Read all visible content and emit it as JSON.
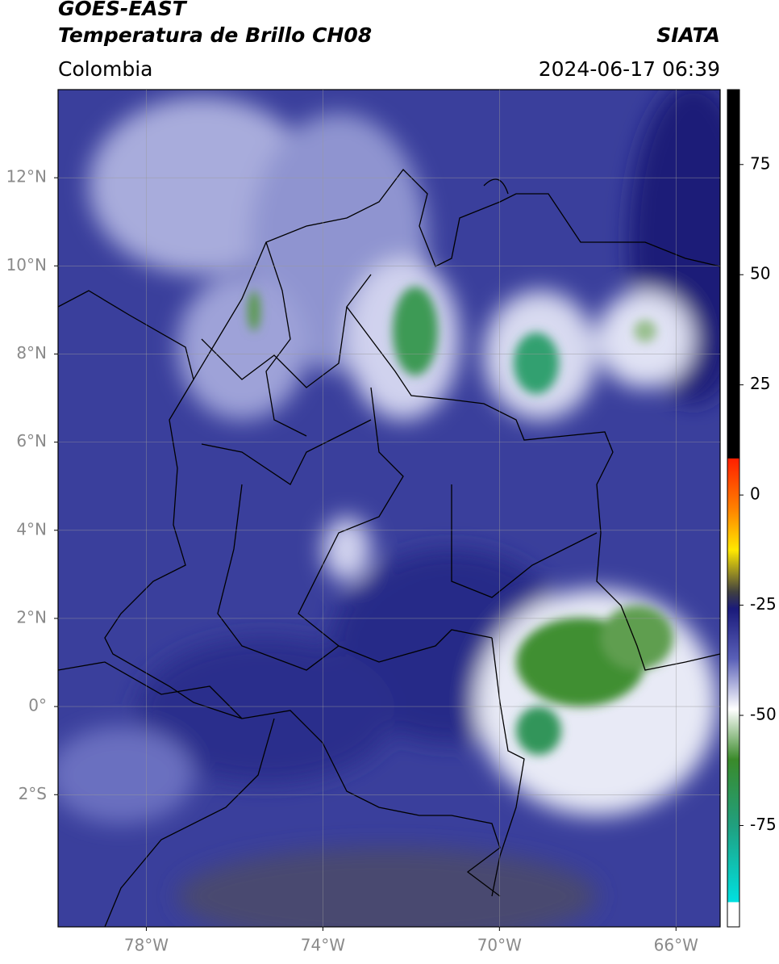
{
  "map": {
    "title": "GOES-EAST",
    "subtitle": "Temperatura de Brillo CH08",
    "source": "SIATA",
    "region": "Colombia",
    "datetime": "2024-06-17 06:39",
    "xlim": [
      -80,
      -65
    ],
    "ylim": [
      -5,
      14
    ],
    "xticks": [
      {
        "value": -78,
        "label": "78°W"
      },
      {
        "value": -74,
        "label": "74°W"
      },
      {
        "value": -70,
        "label": "70°W"
      },
      {
        "value": -66,
        "label": "66°W"
      }
    ],
    "yticks": [
      {
        "value": 12,
        "label": "12°N"
      },
      {
        "value": 10,
        "label": "10°N"
      },
      {
        "value": 8,
        "label": "8°N"
      },
      {
        "value": 6,
        "label": "6°N"
      },
      {
        "value": 4,
        "label": "4°N"
      },
      {
        "value": 2,
        "label": "2°N"
      },
      {
        "value": 0,
        "label": "0°"
      },
      {
        "value": -2,
        "label": "2°S"
      }
    ],
    "grid": true,
    "colorbar": {
      "lim": [
        -98,
        92
      ],
      "ticks": [
        75,
        50,
        25,
        0,
        -25,
        -50,
        -75
      ]
    }
  }
}
